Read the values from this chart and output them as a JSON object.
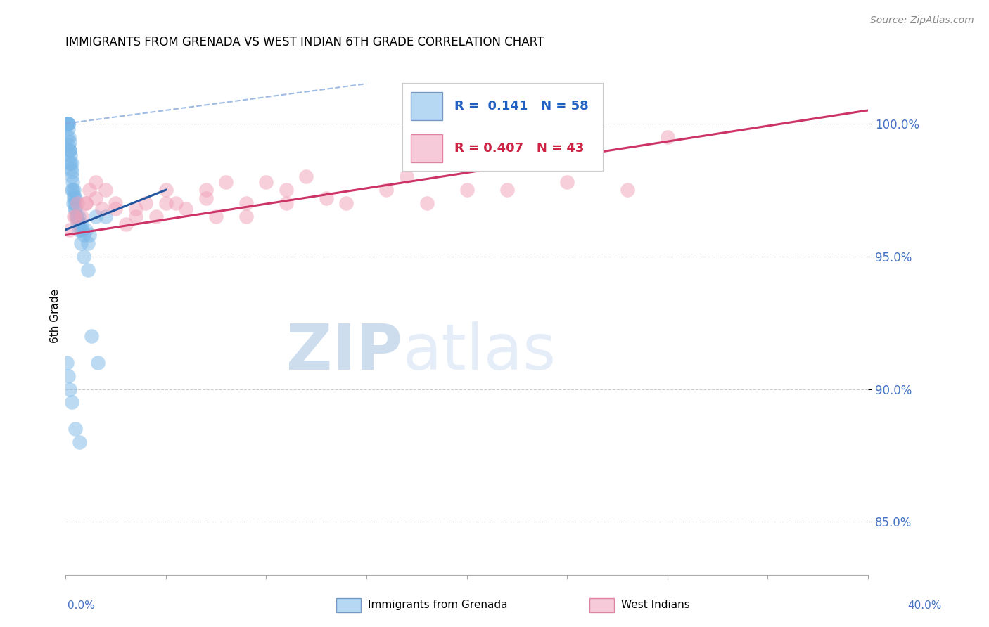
{
  "title": "IMMIGRANTS FROM GRENADA VS WEST INDIAN 6TH GRADE CORRELATION CHART",
  "source": "Source: ZipAtlas.com",
  "ylabel": "6th Grade",
  "xlim": [
    0.0,
    40.0
  ],
  "ylim": [
    83.0,
    102.5
  ],
  "yticks": [
    85.0,
    90.0,
    95.0,
    100.0
  ],
  "ytick_labels": [
    "85.0%",
    "90.0%",
    "95.0%",
    "100.0%"
  ],
  "legend_blue_r": "0.141",
  "legend_blue_n": "58",
  "legend_pink_r": "0.407",
  "legend_pink_n": "43",
  "blue_color": "#7bb8e8",
  "pink_color": "#f0a0b8",
  "blue_line_color": "#2255a0",
  "pink_line_color": "#cc3366",
  "dashed_line_color": "#88aadd",
  "watermark_zip": "ZIP",
  "watermark_atlas": "atlas",
  "blue_scatter_x": [
    0.05,
    0.05,
    0.1,
    0.1,
    0.12,
    0.15,
    0.15,
    0.18,
    0.2,
    0.2,
    0.22,
    0.25,
    0.25,
    0.28,
    0.3,
    0.3,
    0.32,
    0.35,
    0.35,
    0.4,
    0.4,
    0.42,
    0.45,
    0.5,
    0.5,
    0.55,
    0.6,
    0.65,
    0.7,
    0.75,
    0.8,
    0.85,
    0.9,
    1.0,
    1.1,
    1.2,
    1.5,
    2.0,
    0.08,
    0.12,
    0.18,
    0.22,
    0.3,
    0.38,
    0.45,
    0.55,
    0.65,
    0.75,
    0.9,
    1.1,
    1.3,
    1.6,
    0.08,
    0.12,
    0.2,
    0.3,
    0.5,
    0.7
  ],
  "blue_scatter_y": [
    100.0,
    100.0,
    100.0,
    100.0,
    100.0,
    100.0,
    99.8,
    99.5,
    99.3,
    99.0,
    99.0,
    98.8,
    98.5,
    98.3,
    98.5,
    98.2,
    98.0,
    97.8,
    97.5,
    97.3,
    97.5,
    97.2,
    97.0,
    97.2,
    96.8,
    96.5,
    96.3,
    96.5,
    96.2,
    96.0,
    96.2,
    96.0,
    95.8,
    96.0,
    95.5,
    95.8,
    96.5,
    96.5,
    99.5,
    99.2,
    99.0,
    98.5,
    97.5,
    97.0,
    96.8,
    96.5,
    96.0,
    95.5,
    95.0,
    94.5,
    92.0,
    91.0,
    91.0,
    90.5,
    90.0,
    89.5,
    88.5,
    88.0
  ],
  "pink_scatter_x": [
    0.2,
    0.4,
    0.6,
    0.8,
    1.0,
    1.2,
    1.5,
    1.8,
    2.0,
    2.5,
    3.0,
    3.5,
    4.0,
    4.5,
    5.0,
    5.5,
    6.0,
    7.0,
    7.5,
    8.0,
    9.0,
    10.0,
    11.0,
    12.0,
    14.0,
    16.0,
    18.0,
    20.0,
    25.0,
    30.0,
    0.5,
    1.0,
    1.5,
    2.5,
    3.5,
    5.0,
    7.0,
    9.0,
    11.0,
    13.0,
    17.0,
    22.0,
    28.0
  ],
  "pink_scatter_y": [
    96.0,
    96.5,
    97.0,
    96.5,
    97.0,
    97.5,
    97.8,
    96.8,
    97.5,
    96.8,
    96.2,
    96.5,
    97.0,
    96.5,
    97.5,
    97.0,
    96.8,
    97.2,
    96.5,
    97.8,
    96.5,
    97.8,
    97.0,
    98.0,
    97.0,
    97.5,
    97.0,
    97.5,
    97.8,
    99.5,
    96.5,
    97.0,
    97.2,
    97.0,
    96.8,
    97.0,
    97.5,
    97.0,
    97.5,
    97.2,
    98.0,
    97.5,
    97.5
  ],
  "blue_line_x0": 0.0,
  "blue_line_y0": 96.0,
  "blue_line_x1": 5.0,
  "blue_line_y1": 97.5,
  "pink_line_x0": 0.0,
  "pink_line_y0": 95.8,
  "pink_line_x1": 40.0,
  "pink_line_y1": 100.5,
  "dash_line_x0": 0.0,
  "dash_line_y0": 100.0,
  "dash_line_x1": 15.0,
  "dash_line_y1": 101.5
}
